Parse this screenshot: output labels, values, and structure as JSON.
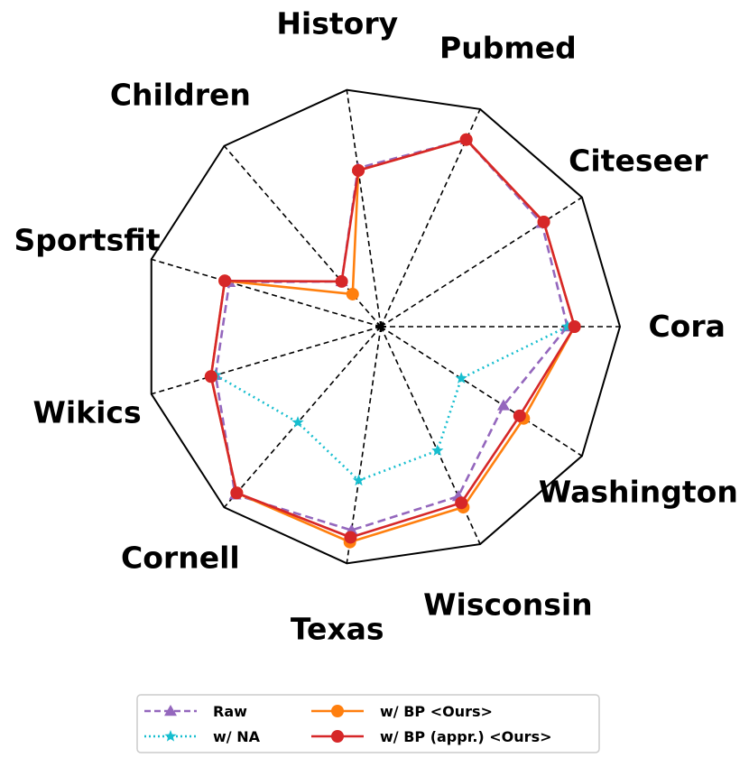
{
  "chart_data": {
    "type": "radar",
    "categories": [
      "Cora",
      "Citeseer",
      "Pubmed",
      "History",
      "Children",
      "Sportsfit",
      "Wikics",
      "Cornell",
      "Texas",
      "Wisconsin",
      "Washington"
    ],
    "rlim": [
      0,
      1
    ],
    "grid": true,
    "legend_position": "bottom",
    "series": [
      {
        "name": "Raw",
        "color": "#9467bd",
        "linestyle": "dashed",
        "marker": "triangle",
        "values": [
          0.78,
          0.8,
          0.86,
          0.67,
          0.25,
          0.66,
          0.72,
          0.93,
          0.86,
          0.78,
          0.61
        ]
      },
      {
        "name": "w/ NA",
        "color": "#17becf",
        "linestyle": "dotted",
        "marker": "star",
        "values": [
          0.78,
          null,
          null,
          null,
          null,
          null,
          0.72,
          0.53,
          0.65,
          0.57,
          0.4
        ]
      },
      {
        "name": "w/ BP <Ours>",
        "color": "#ff7f0e",
        "linestyle": "solid",
        "marker": "circle",
        "values": [
          0.81,
          0.81,
          0.86,
          0.66,
          0.18,
          0.68,
          0.74,
          0.92,
          0.91,
          0.83,
          0.71
        ]
      },
      {
        "name": "w/ BP (appr.) <Ours>",
        "color": "#d62728",
        "linestyle": "solid",
        "marker": "circle",
        "values": [
          0.81,
          0.81,
          0.86,
          0.66,
          0.25,
          0.68,
          0.74,
          0.92,
          0.89,
          0.81,
          0.69
        ]
      }
    ]
  },
  "legend": {
    "items": [
      {
        "label": "Raw",
        "color": "#9467bd",
        "dash": "7,4",
        "marker": "triangle"
      },
      {
        "label": "w/ NA",
        "color": "#17becf",
        "dash": "2,3",
        "marker": "star"
      },
      {
        "label": "w/ BP <Ours>",
        "color": "#ff7f0e",
        "dash": "",
        "marker": "circle"
      },
      {
        "label": "w/ BP (appr.) <Ours>",
        "color": "#d62728",
        "dash": "",
        "marker": "circle"
      }
    ]
  }
}
